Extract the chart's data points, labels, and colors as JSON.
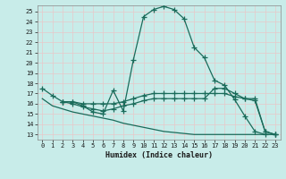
{
  "xlabel": "Humidex (Indice chaleur)",
  "background_color": "#c8ece9",
  "grid_color": "#b0d8d4",
  "line_color": "#1a6b5a",
  "xlim": [
    -0.5,
    23.5
  ],
  "ylim": [
    12.5,
    25.6
  ],
  "yticks": [
    13,
    14,
    15,
    16,
    17,
    18,
    19,
    20,
    21,
    22,
    23,
    24,
    25
  ],
  "xticks": [
    0,
    1,
    2,
    3,
    4,
    5,
    6,
    7,
    8,
    9,
    10,
    11,
    12,
    13,
    14,
    15,
    16,
    17,
    18,
    19,
    20,
    21,
    22,
    23
  ],
  "curve1_x": [
    0,
    1,
    2,
    3,
    4,
    5,
    6,
    7,
    8,
    9,
    10,
    11,
    12,
    13,
    14,
    15,
    16,
    17,
    18,
    19,
    20,
    21,
    22,
    23
  ],
  "curve1_y": [
    17.5,
    16.8,
    16.2,
    16.2,
    15.8,
    15.2,
    15.0,
    17.3,
    15.3,
    20.3,
    24.5,
    25.2,
    25.5,
    25.2,
    24.3,
    21.5,
    20.5,
    18.3,
    17.8,
    16.4,
    14.8,
    13.3,
    13.0,
    13.0
  ],
  "curve2_x": [
    2,
    3,
    4,
    5,
    6,
    7,
    8,
    9,
    10,
    11,
    12,
    13,
    14,
    15,
    16,
    17,
    18,
    19,
    20,
    21,
    22,
    23
  ],
  "curve2_y": [
    16.2,
    16.2,
    16.0,
    16.0,
    16.0,
    16.0,
    16.2,
    16.5,
    16.8,
    17.0,
    17.0,
    17.0,
    17.0,
    17.0,
    17.0,
    17.0,
    17.0,
    16.7,
    16.5,
    16.5,
    13.3,
    13.0
  ],
  "curve3_x": [
    2,
    3,
    4,
    5,
    6,
    7,
    8,
    9,
    10,
    11,
    12,
    13,
    14,
    15,
    16,
    17,
    18,
    19,
    20,
    21,
    22,
    23
  ],
  "curve3_y": [
    16.2,
    16.0,
    15.7,
    15.5,
    15.3,
    15.5,
    15.8,
    16.0,
    16.3,
    16.5,
    16.5,
    16.5,
    16.5,
    16.5,
    16.5,
    17.5,
    17.5,
    17.0,
    16.5,
    16.3,
    13.3,
    13.0
  ],
  "curve4_x": [
    0,
    1,
    2,
    3,
    4,
    5,
    6,
    7,
    8,
    9,
    10,
    11,
    12,
    13,
    14,
    15,
    16,
    17,
    18,
    19,
    20,
    21,
    22,
    23
  ],
  "curve4_y": [
    16.5,
    15.8,
    15.5,
    15.2,
    15.0,
    14.8,
    14.6,
    14.4,
    14.1,
    13.9,
    13.7,
    13.5,
    13.3,
    13.2,
    13.1,
    13.0,
    13.0,
    13.0,
    13.0,
    13.0,
    13.0,
    13.0,
    13.0,
    13.0
  ]
}
